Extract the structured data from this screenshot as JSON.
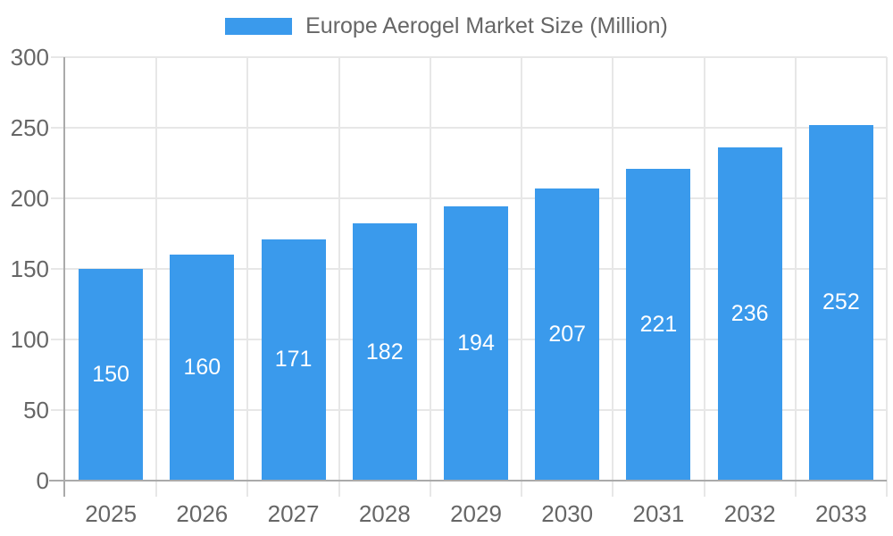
{
  "chart_data": {
    "type": "bar",
    "title": "Europe Aerogel Market Size (Million)",
    "series_name": "Europe Aerogel Market Size (Million)",
    "categories": [
      "2025",
      "2026",
      "2027",
      "2028",
      "2029",
      "2030",
      "2031",
      "2032",
      "2033"
    ],
    "values": [
      150,
      160,
      171,
      182,
      194,
      207,
      221,
      236,
      252
    ],
    "xlabel": "",
    "ylabel": "",
    "ylim": [
      0,
      300
    ],
    "yticks": [
      0,
      50,
      100,
      150,
      200,
      250,
      300
    ],
    "grid": true,
    "legend_position": "top",
    "bar_color": "#3A9AEC",
    "value_label_color": "#ffffff",
    "axis_color": "#aaaaaa",
    "grid_color": "#e7e7e7",
    "tick_label_color": "#666666"
  }
}
